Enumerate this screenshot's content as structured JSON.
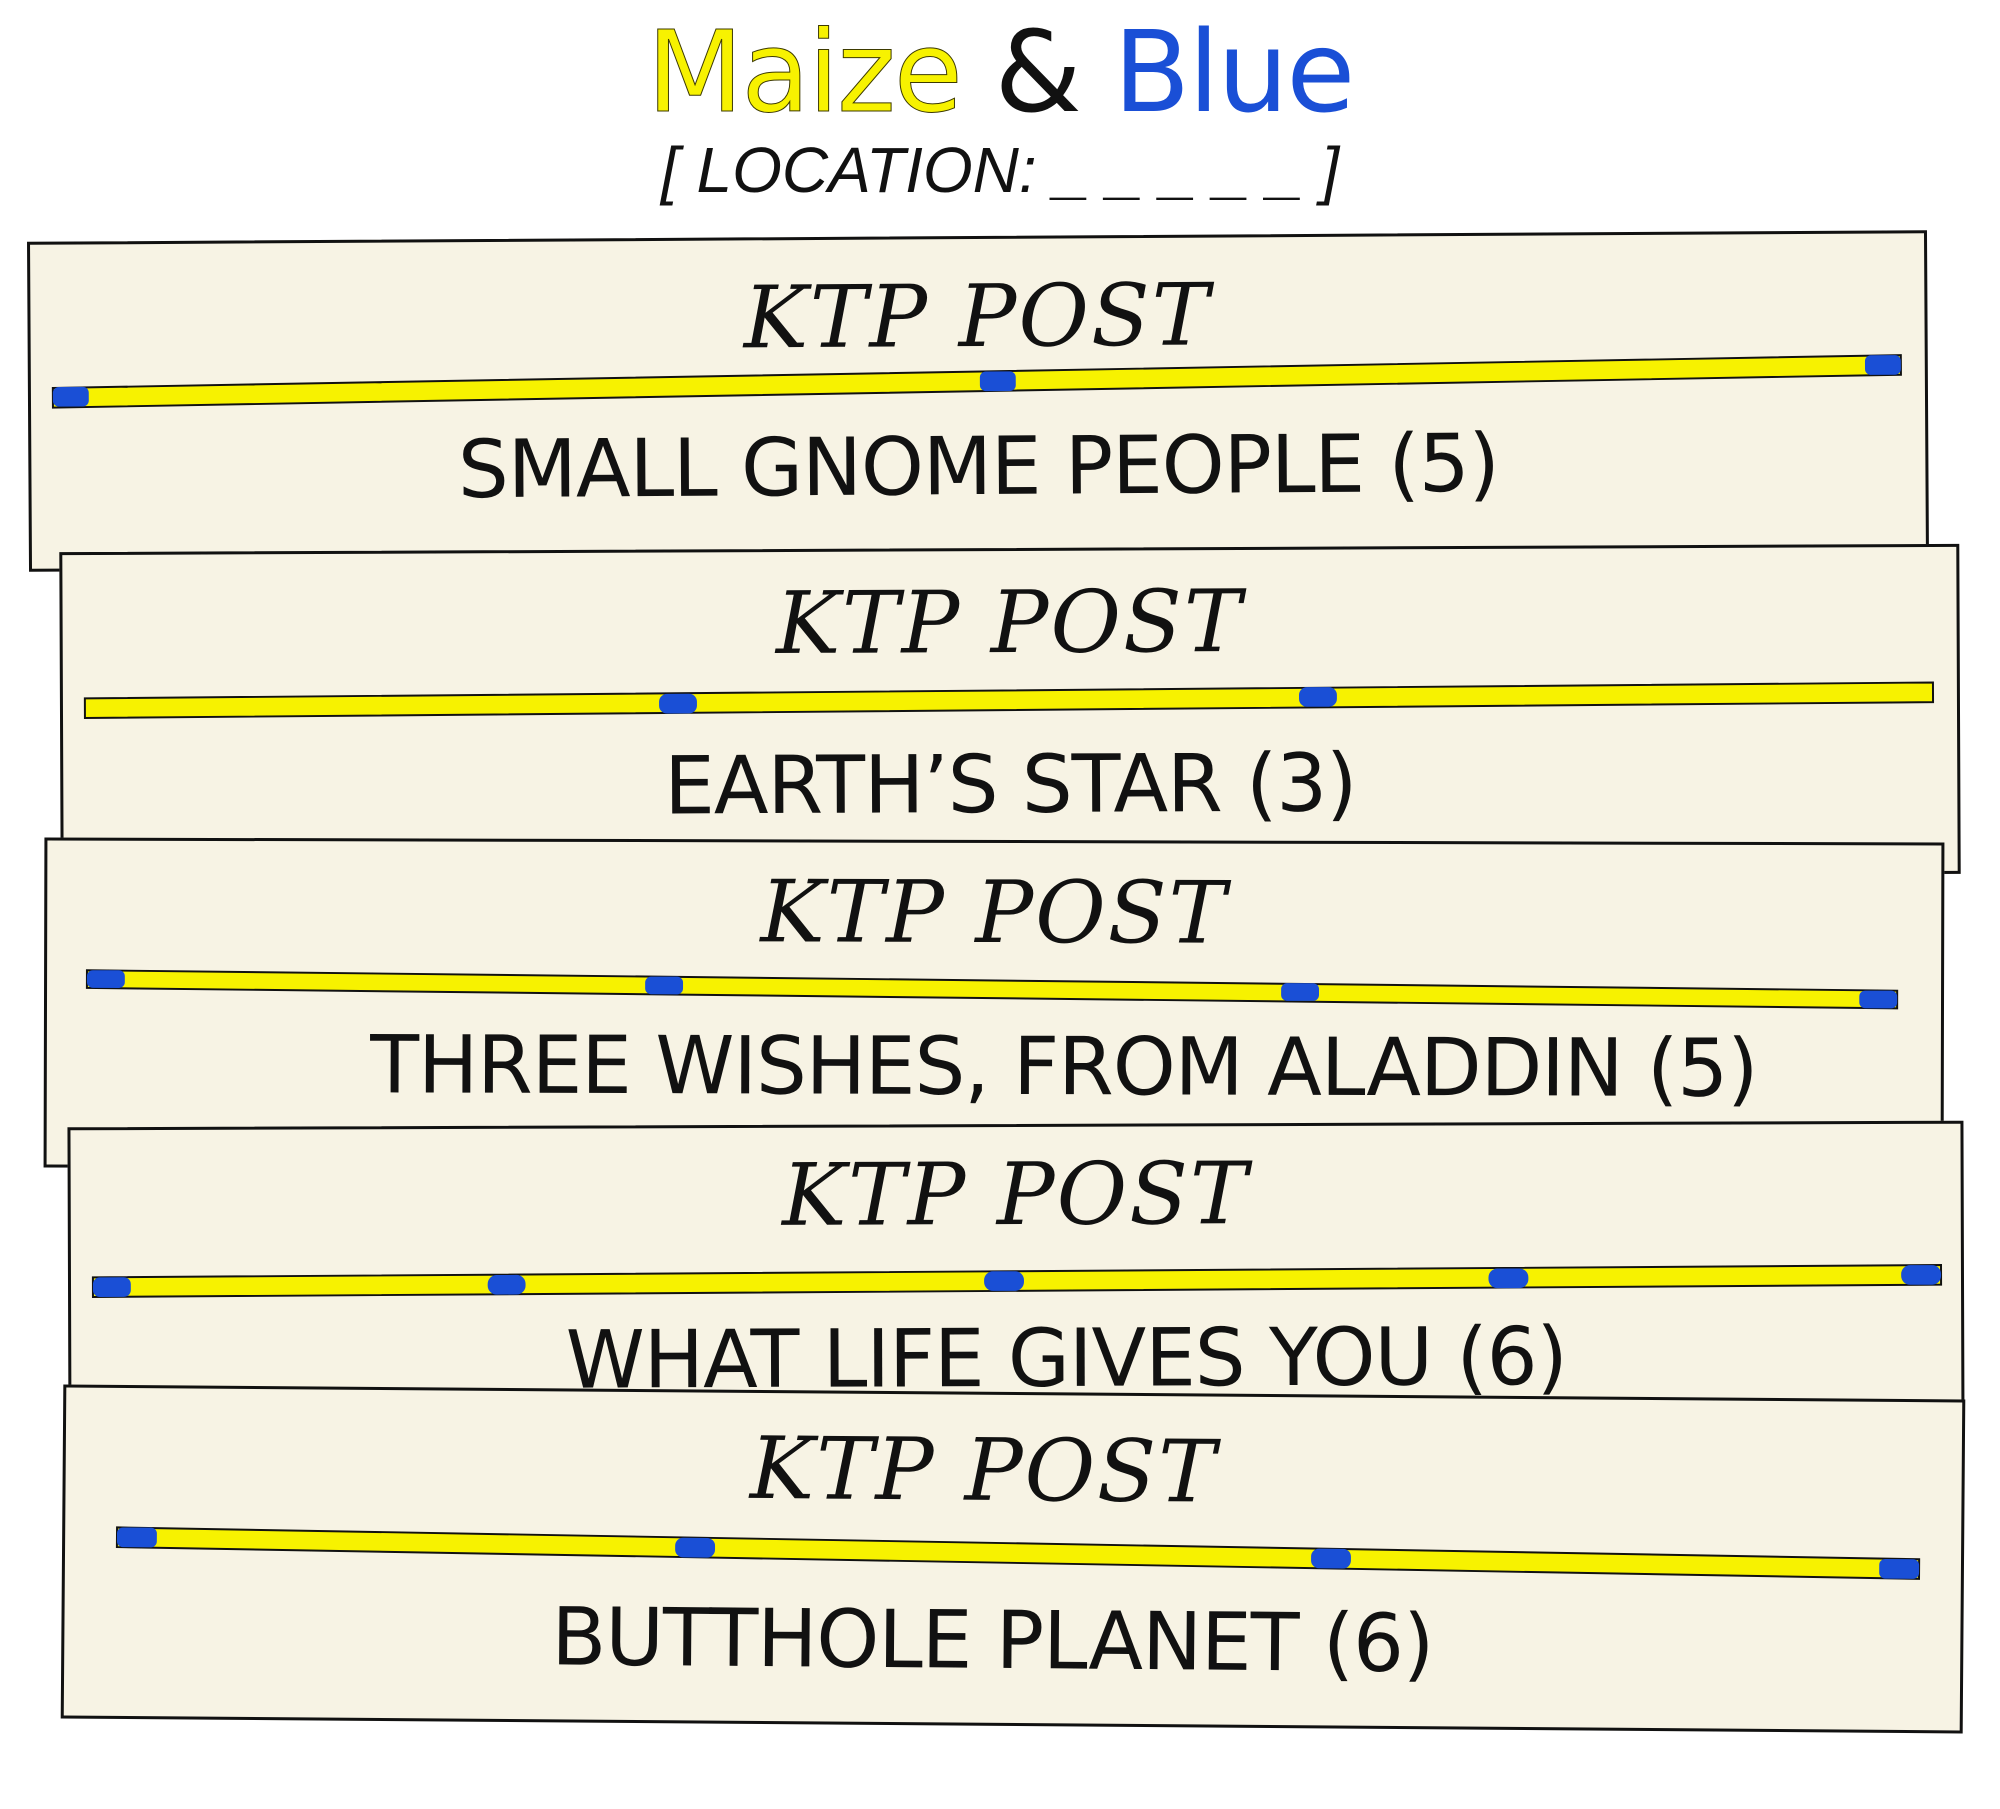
{
  "header": {
    "title_part1": "Maize",
    "title_amp": "&",
    "title_part2": "Blue",
    "location_text": "[ LOCATION: _ _ _ _ _ ]"
  },
  "colors": {
    "maize": "#f7f200",
    "blue": "#1a4fd6",
    "card_bg": "#f7f3e4",
    "ink": "#111111"
  },
  "cards": [
    {
      "header": "KTP POST",
      "clue": "SMALL GNOME PEOPLE (5)",
      "letter_count": 5
    },
    {
      "header": "KTP POST",
      "clue": "EARTH’S STAR (3)",
      "letter_count": 3
    },
    {
      "header": "KTP POST",
      "clue": "THREE WISHES, FROM ALADDIN (5)",
      "letter_count": 5
    },
    {
      "header": "KTP POST",
      "clue": "WHAT  LIFE GIVES YOU (6)",
      "letter_count": 6
    },
    {
      "header": "KTP POST",
      "clue": "BUTTHOLE PLANET (6)",
      "letter_count": 6
    }
  ]
}
